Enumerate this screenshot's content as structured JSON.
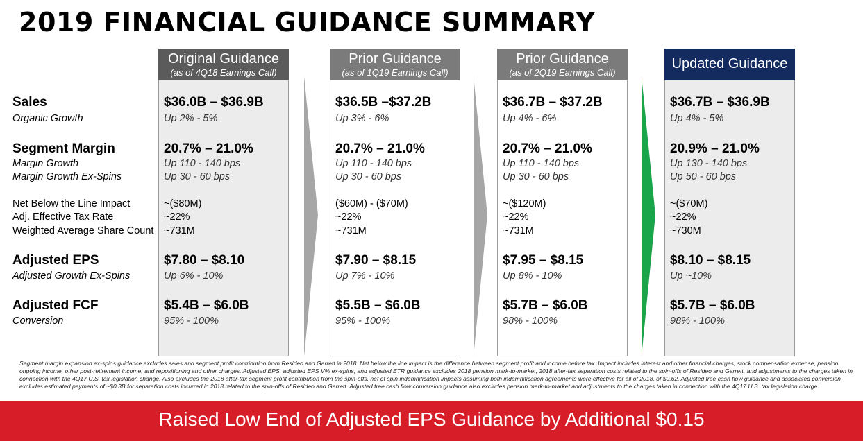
{
  "title": "2019 FINANCIAL GUIDANCE SUMMARY",
  "row_labels": {
    "sales": "Sales",
    "organic_growth": "Organic Growth",
    "segment_margin": "Segment Margin",
    "margin_growth": "Margin Growth",
    "margin_growth_ex_spins": "Margin Growth Ex-Spins",
    "net_below_line": "Net Below the Line Impact",
    "adj_tax_rate": "Adj. Effective Tax Rate",
    "share_count": "Weighted Average Share Count",
    "adjusted_eps": "Adjusted EPS",
    "adj_growth_ex_spins": "Adjusted Growth Ex-Spins",
    "adjusted_fcf": "Adjusted FCF",
    "conversion": "Conversion"
  },
  "columns": [
    {
      "title": "Original Guidance",
      "subtitle": "(as of 4Q18 Earnings Call)",
      "sales": "$36.0B – $36.9B",
      "organic_growth": "Up 2% - 5%",
      "segment_margin": "20.7% – 21.0%",
      "margin_growth": "Up 110 - 140 bps",
      "margin_growth_ex_spins": "Up 30 - 60 bps",
      "net_below_line": "~($80M)",
      "adj_tax_rate": "~22%",
      "share_count": "~731M",
      "adjusted_eps": "$7.80 – $8.10",
      "adj_growth_ex_spins": "Up 6% - 10%",
      "adjusted_fcf": "$5.4B – $6.0B",
      "conversion": "95% - 100%"
    },
    {
      "title": "Prior Guidance",
      "subtitle": "(as of 1Q19 Earnings Call)",
      "sales": "$36.5B –$37.2B",
      "organic_growth": "Up 3% - 6%",
      "segment_margin": "20.7% – 21.0%",
      "margin_growth": "Up 110 - 140 bps",
      "margin_growth_ex_spins": "Up 30 - 60 bps",
      "net_below_line": "($60M) - ($70M)",
      "adj_tax_rate": "~22%",
      "share_count": "~731M",
      "adjusted_eps": "$7.90 – $8.15",
      "adj_growth_ex_spins": "Up 7% - 10%",
      "adjusted_fcf": "$5.5B – $6.0B",
      "conversion": "95% - 100%"
    },
    {
      "title": "Prior Guidance",
      "subtitle": "(as of 2Q19 Earnings Call)",
      "sales": "$36.7B – $37.2B",
      "organic_growth": "Up 4% - 6%",
      "segment_margin": "20.7% – 21.0%",
      "margin_growth": "Up 110 - 140 bps",
      "margin_growth_ex_spins": "Up 30 - 60 bps",
      "net_below_line": "~($120M)",
      "adj_tax_rate": "~22%",
      "share_count": "~731M",
      "adjusted_eps": "$7.95 – $8.15",
      "adj_growth_ex_spins": "Up 8% - 10%",
      "adjusted_fcf": "$5.7B – $6.0B",
      "conversion": "98% - 100%"
    },
    {
      "title": "Updated Guidance",
      "subtitle": "",
      "sales": "$36.7B – $36.9B",
      "organic_growth": "Up 4% - 5%",
      "segment_margin": "20.9% – 21.0%",
      "margin_growth": "Up 130 - 140 bps",
      "margin_growth_ex_spins": "Up 50 - 60 bps",
      "net_below_line": "~($70M)",
      "adj_tax_rate": "~22%",
      "share_count": "~730M",
      "adjusted_eps": "$8.10 – $8.15",
      "adj_growth_ex_spins": "Up ~10%",
      "adjusted_fcf": "$5.7B – $6.0B",
      "conversion": "98% - 100%"
    }
  ],
  "colors": {
    "updated_header": "#142b5f",
    "prior_header": "#7b7b7b",
    "banner": "#d71e28",
    "arrow_gray": "#a6a6a6",
    "arrow_green": "#1aa54a"
  },
  "footnote": "Segment margin expansion ex-spins guidance excludes sales and segment profit contribution from Resideo and Garrett in 2018. Net below the line impact is the difference between segment profit and income before tax. Impact includes interest and other financial charges, stock compensation expense, pension ongoing income, other post-retirement income, and repositioning and other charges. Adjusted EPS, adjusted EPS V% ex-spins, and adjusted ETR guidance excludes 2018 pension mark-to-market, 2018 after-tax separation costs related to the spin-offs of Resideo and Garrett, and adjustments to the charges taken in connection with the 4Q17 U.S. tax legislation change. Also excludes the 2018 after-tax segment profit contribution from the spin-offs, net of spin indemnification impacts assuming both indemnification agreements were effective for all of 2018, of $0.62. Adjusted free cash flow guidance and associated conversion excludes estimated payments of ~$0.3B for separation costs incurred in 2018 related to the spin-offs of Resideo and Garrett. Adjusted free cash flow conversion guidance also excludes pension mark-to-market and adjustments to the charges taken in connection with the 4Q17 U.S. tax legislation charge.",
  "banner": "Raised Low End of Adjusted EPS Guidance by Additional $0.15"
}
